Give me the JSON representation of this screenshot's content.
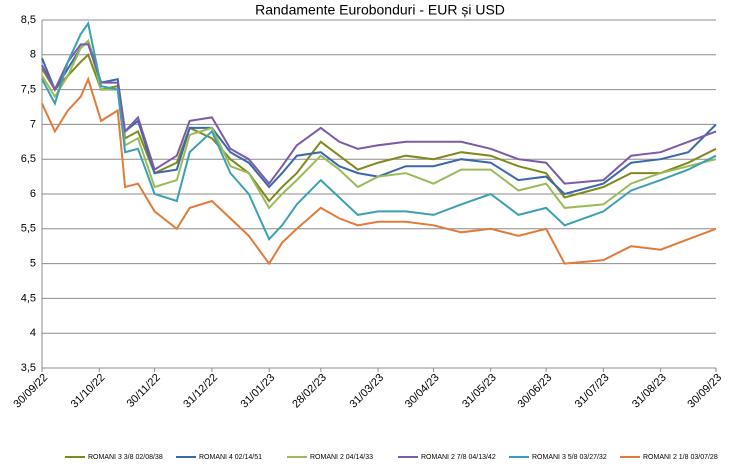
{
  "chart_data": {
    "type": "line",
    "title": "Randamente Eurobonduri - EUR și USD",
    "x": [
      "30/09/22",
      "07/10/22",
      "14/10/22",
      "21/10/22",
      "25/10/22",
      "01/11/22",
      "10/11/22",
      "14/11/22",
      "21/11/22",
      "30/11/22",
      "12/12/22",
      "19/12/22",
      "31/12/22",
      "10/01/23",
      "20/01/23",
      "31/01/23",
      "07/02/23",
      "15/02/23",
      "28/02/23",
      "10/03/23",
      "20/03/23",
      "31/03/23",
      "15/04/23",
      "30/04/23",
      "15/05/23",
      "31/05/23",
      "15/06/23",
      "30/06/23",
      "10/07/23",
      "31/07/23",
      "15/08/23",
      "31/08/23",
      "15/09/23",
      "30/09/23"
    ],
    "series": [
      {
        "name": "ROMANI 3 3/8 02/08/38",
        "color": "#808a1c",
        "values": [
          7.8,
          7.5,
          7.7,
          7.9,
          8.0,
          7.5,
          7.55,
          6.8,
          6.9,
          6.3,
          6.45,
          6.95,
          6.8,
          6.5,
          6.3,
          5.9,
          6.1,
          6.3,
          6.75,
          6.55,
          6.35,
          6.45,
          6.55,
          6.5,
          6.6,
          6.55,
          6.4,
          6.3,
          5.95,
          6.1,
          6.3,
          6.3,
          6.45,
          6.65
        ]
      },
      {
        "name": "ROMANI 4 02/14/51",
        "color": "#3a68a8",
        "values": [
          7.95,
          7.5,
          7.8,
          8.1,
          8.2,
          7.6,
          7.65,
          6.9,
          7.05,
          6.3,
          6.35,
          6.95,
          6.95,
          6.6,
          6.45,
          6.1,
          6.3,
          6.55,
          6.6,
          6.4,
          6.3,
          6.25,
          6.4,
          6.4,
          6.5,
          6.45,
          6.2,
          6.25,
          6.0,
          6.15,
          6.45,
          6.5,
          6.6,
          7.0
        ]
      },
      {
        "name": "ROMANI 2 04/14/33",
        "color": "#9bbb59",
        "values": [
          7.7,
          7.4,
          7.7,
          8.1,
          8.2,
          7.5,
          7.5,
          6.7,
          6.8,
          6.1,
          6.2,
          6.85,
          6.95,
          6.4,
          6.3,
          5.8,
          6.0,
          6.2,
          6.55,
          6.35,
          6.1,
          6.25,
          6.3,
          6.15,
          6.35,
          6.35,
          6.05,
          6.15,
          5.8,
          5.85,
          6.15,
          6.3,
          6.4,
          6.5
        ]
      },
      {
        "name": "ROMANI 2 7/8 04/13/42",
        "color": "#7b5ba6",
        "values": [
          7.85,
          7.5,
          7.9,
          8.15,
          8.15,
          7.6,
          7.6,
          6.9,
          7.1,
          6.35,
          6.55,
          7.05,
          7.1,
          6.65,
          6.5,
          6.15,
          6.4,
          6.7,
          6.95,
          6.75,
          6.65,
          6.7,
          6.75,
          6.75,
          6.75,
          6.65,
          6.5,
          6.45,
          6.15,
          6.2,
          6.55,
          6.6,
          6.75,
          6.9
        ]
      },
      {
        "name": "ROMANI 3 5/8 03/27/32",
        "color": "#3aa0b2",
        "values": [
          7.65,
          7.3,
          7.9,
          8.3,
          8.45,
          7.55,
          7.5,
          6.6,
          6.65,
          6.0,
          5.9,
          6.6,
          6.9,
          6.3,
          6.0,
          5.35,
          5.55,
          5.85,
          6.2,
          5.95,
          5.7,
          5.75,
          5.75,
          5.7,
          5.85,
          6.0,
          5.7,
          5.8,
          5.55,
          5.75,
          6.05,
          6.2,
          6.35,
          6.55
        ]
      },
      {
        "name": "ROMANI 2 1/8 03/07/28",
        "color": "#e07b39",
        "values": [
          7.3,
          6.9,
          7.2,
          7.4,
          7.65,
          7.05,
          7.2,
          6.1,
          6.15,
          5.75,
          5.5,
          5.8,
          5.9,
          5.65,
          5.4,
          5.0,
          5.3,
          5.5,
          5.8,
          5.65,
          5.55,
          5.6,
          5.6,
          5.55,
          5.45,
          5.5,
          5.4,
          5.5,
          5.0,
          5.05,
          5.25,
          5.2,
          5.35,
          5.5
        ]
      }
    ],
    "xlim": [
      "30/09/22",
      "30/09/23"
    ],
    "xticks": [
      "30/09/22",
      "31/10/22",
      "30/11/22",
      "31/12/22",
      "31/01/23",
      "28/02/23",
      "31/03/23",
      "30/04/23",
      "31/05/23",
      "30/06/23",
      "31/07/23",
      "31/08/23",
      "30/09/23"
    ],
    "ylim": [
      3.5,
      8.5
    ],
    "yticks": [
      {
        "value": 3.5,
        "label": "3,5"
      },
      {
        "value": 4,
        "label": "4"
      },
      {
        "value": 4.5,
        "label": "4,5"
      },
      {
        "value": 5,
        "label": "5"
      },
      {
        "value": 5.5,
        "label": "5,5"
      },
      {
        "value": 6,
        "label": "6"
      },
      {
        "value": 6.5,
        "label": "6,5"
      },
      {
        "value": 7,
        "label": "7"
      },
      {
        "value": 7.5,
        "label": "7,5"
      },
      {
        "value": 8,
        "label": "8"
      },
      {
        "value": 8.5,
        "label": "8,5"
      }
    ],
    "grid": true
  }
}
